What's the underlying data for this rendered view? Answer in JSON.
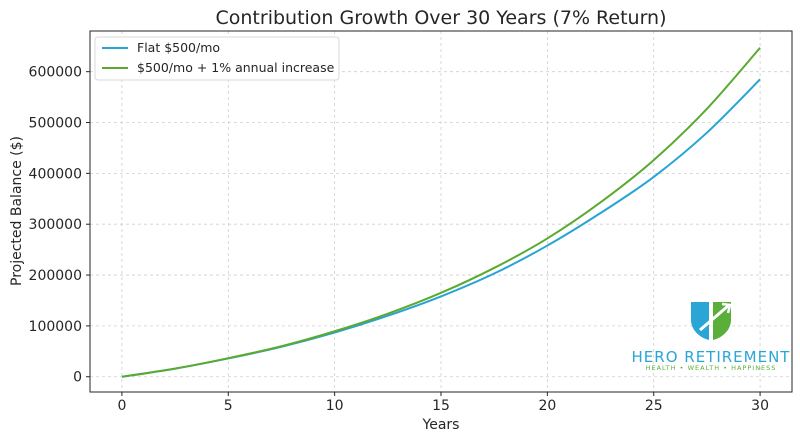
{
  "chart_data": {
    "type": "line",
    "title": "Contribution Growth Over 30 Years (7% Return)",
    "xlabel": "Years",
    "ylabel": "Projected Balance ($)",
    "xlim": [
      -1.5,
      31.5
    ],
    "ylim": [
      -30000,
      680000
    ],
    "xticks": [
      0,
      5,
      10,
      15,
      20,
      25,
      30
    ],
    "yticks": [
      0,
      100000,
      200000,
      300000,
      400000,
      500000,
      600000
    ],
    "xtick_labels": [
      "0",
      "5",
      "10",
      "15",
      "20",
      "25",
      "30"
    ],
    "ytick_labels": [
      "0",
      "100000",
      "200000",
      "300000",
      "400000",
      "500000",
      "600000"
    ],
    "grid": true,
    "legend_position": "top-left",
    "x": [
      0,
      2.5,
      5,
      7.5,
      10,
      12.5,
      15,
      17.5,
      20,
      22.5,
      25,
      27.5,
      30
    ],
    "series": [
      {
        "name": "Flat $500/mo",
        "color": "#27a3d6",
        "values": [
          0,
          16000,
          36000,
          59000,
          87000,
          120000,
          158000,
          203000,
          258000,
          322000,
          393000,
          480000,
          585000
        ]
      },
      {
        "name": "$500/mo + 1% annual increase",
        "color": "#5aaa2e",
        "values": [
          0,
          16000,
          36500,
          60000,
          89500,
          124000,
          165000,
          214000,
          272000,
          343000,
          426000,
          527000,
          647000
        ]
      }
    ]
  },
  "brand": {
    "name": "HERO RETIREMENT",
    "tagline": "HEALTH • WEALTH • HAPPINESS",
    "primary_color": "#2aa6d6",
    "secondary_color": "#5aaf3a"
  }
}
